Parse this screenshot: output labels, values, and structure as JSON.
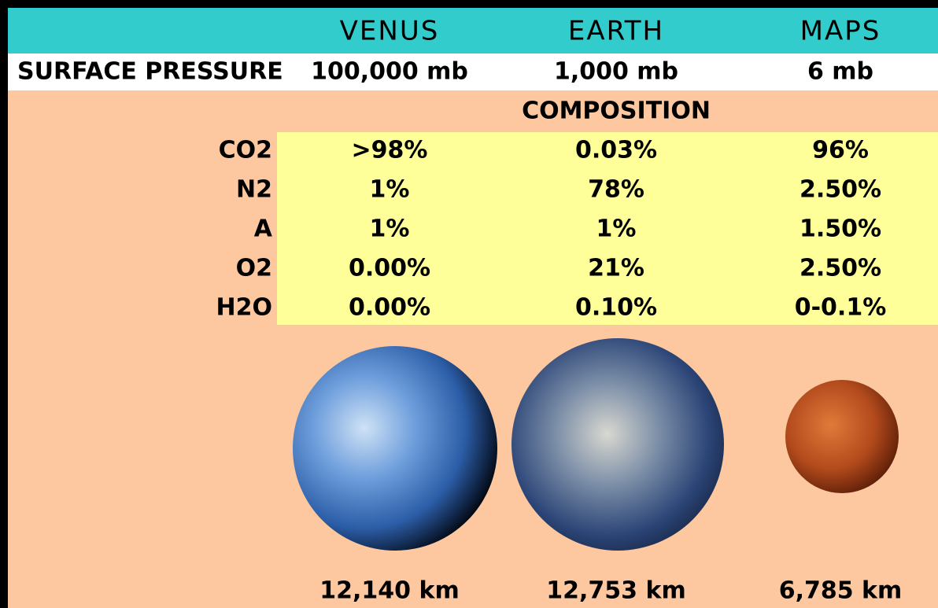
{
  "header": {
    "columns": [
      "VENUS",
      "EARTH",
      "MAPS"
    ]
  },
  "pressure": {
    "label": "SURFACE PRESSURE",
    "values": [
      "100,000 mb",
      "1,000 mb",
      "6 mb"
    ]
  },
  "composition": {
    "title": "COMPOSITION",
    "rows": [
      {
        "label": "CO2",
        "values": [
          ">98%",
          "0.03%",
          "96%"
        ]
      },
      {
        "label": "N2",
        "values": [
          "1%",
          "78%",
          "2.50%"
        ]
      },
      {
        "label": "A",
        "values": [
          "1%",
          "1%",
          "1.50%"
        ]
      },
      {
        "label": "O2",
        "values": [
          "0.00%",
          "21%",
          "2.50%"
        ]
      },
      {
        "label": "H2O",
        "values": [
          "0.00%",
          "0.10%",
          "0-0.1%"
        ]
      }
    ]
  },
  "diameters": [
    "12,140 km",
    "12,753 km",
    "6,785 km"
  ]
}
